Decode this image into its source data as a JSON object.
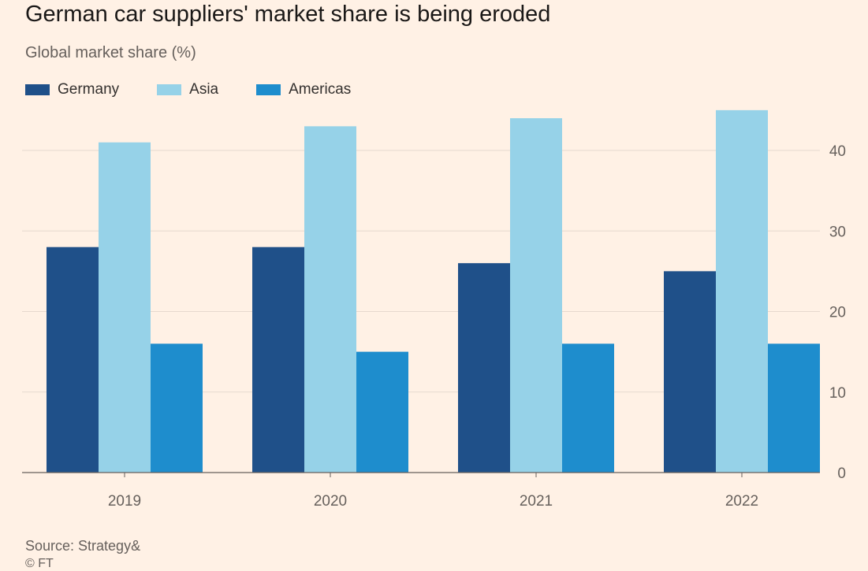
{
  "title": "German car suppliers' market share is being eroded",
  "subtitle": "Global market share (%)",
  "source": "Source: Strategy&",
  "footer_mark": "© FT",
  "chart_data": {
    "type": "bar",
    "title": "German car suppliers' market share is being eroded",
    "ylabel": "Global market share (%)",
    "xlabel": "",
    "categories": [
      "2019",
      "2020",
      "2021",
      "2022"
    ],
    "series": [
      {
        "name": "Germany",
        "color": "#1f5089",
        "values": [
          28,
          28,
          26,
          25
        ]
      },
      {
        "name": "Asia",
        "color": "#96d2e8",
        "values": [
          41,
          43,
          44,
          45
        ]
      },
      {
        "name": "Americas",
        "color": "#1e8dcd",
        "values": [
          16,
          15,
          16,
          16
        ]
      }
    ],
    "ylim": [
      0,
      45
    ],
    "yticks": [
      0,
      10,
      20,
      30,
      40
    ],
    "y_axis_side": "right",
    "grid": true,
    "legend_position": "top-left"
  }
}
